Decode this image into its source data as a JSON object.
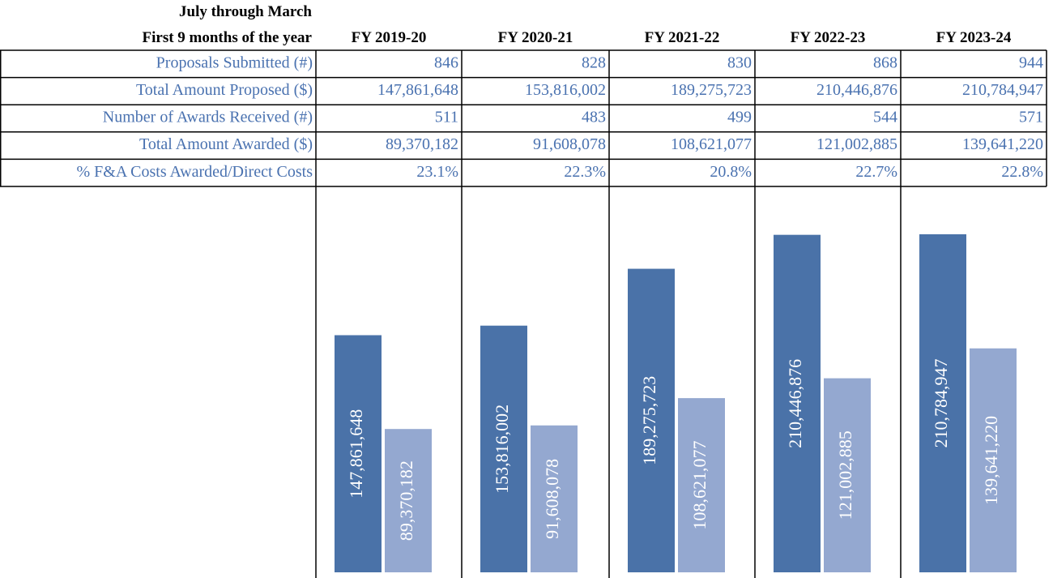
{
  "table": {
    "title": [
      "July through March",
      "First 9 months of the year"
    ],
    "columns": [
      "FY 2019-20",
      "FY 2020-21",
      "FY 2021-22",
      "FY 2022-23",
      "FY 2023-24"
    ],
    "rows": [
      {
        "label": "Proposals Submitted (#)",
        "values": [
          "846",
          "828",
          "830",
          "868",
          "944"
        ]
      },
      {
        "label": "Total Amount Proposed ($)",
        "values": [
          "147,861,648",
          "153,816,002",
          "189,275,723",
          "210,446,876",
          "210,784,947"
        ]
      },
      {
        "label": "Number of Awards Received (#)",
        "values": [
          "511",
          "483",
          "499",
          "544",
          "571"
        ]
      },
      {
        "label": "Total Amount Awarded ($)",
        "values": [
          "89,370,182",
          "91,608,078",
          "108,621,077",
          "121,002,885",
          "139,641,220"
        ]
      },
      {
        "label": "% F&A Costs Awarded/Direct Costs",
        "values": [
          "23.1%",
          "22.3%",
          "20.8%",
          "22.7%",
          "22.8%"
        ]
      }
    ]
  },
  "chart_data": {
    "type": "bar",
    "series": [
      {
        "color": "#4a72a8",
        "values": [
          147861648,
          153816002,
          189275723,
          210446876,
          210784947
        ],
        "value_labels": [
          "147,861,648",
          "153,816,002",
          "189,275,723",
          "210,446,876",
          "210,784,947"
        ]
      },
      {
        "color": "#94a8d0",
        "values": [
          89370182,
          91608078,
          108621077,
          121002885,
          139641220
        ],
        "value_labels": [
          "89,370,182",
          "91,608,078",
          "108,621,077",
          "121,002,885",
          "139,641,220"
        ]
      }
    ]
  }
}
